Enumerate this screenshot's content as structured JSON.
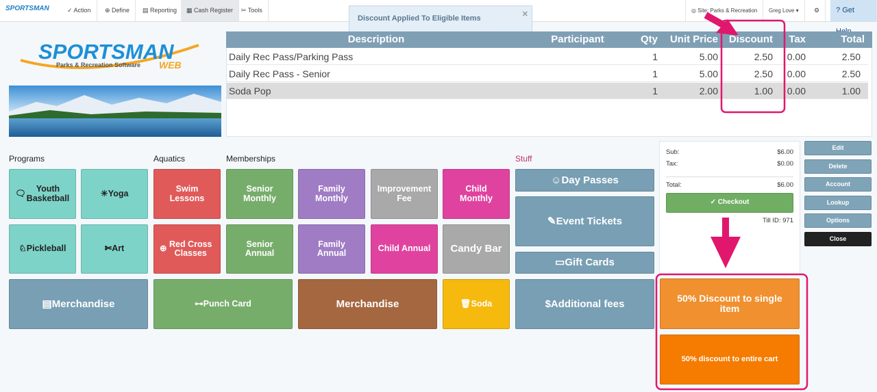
{
  "nav": {
    "logo": "SPORTSMAN",
    "items": [
      "Action",
      "Define",
      "Reporting",
      "Cash Register",
      "Tools"
    ],
    "site": "Site: Parks & Recreation",
    "user": "Greg Love",
    "help": "Get Help"
  },
  "toast": "Discount Applied To Eligible Items",
  "brand": {
    "name": "SPORTSMAN",
    "tagline": "Parks & Recreation Software",
    "sub": "WEB"
  },
  "cart": {
    "columns": [
      "Description",
      "Participant",
      "Qty",
      "Unit Price",
      "Discount",
      "Tax",
      "Total"
    ],
    "rows": [
      {
        "description": "Daily Rec Pass/Parking Pass",
        "qty": "1",
        "unit_price": "5.00",
        "discount": "2.50",
        "tax": "0.00",
        "total": "2.50"
      },
      {
        "description": "Daily Rec Pass - Senior",
        "qty": "1",
        "unit_price": "5.00",
        "discount": "2.50",
        "tax": "0.00",
        "total": "2.50"
      },
      {
        "description": "Soda Pop",
        "qty": "1",
        "unit_price": "2.00",
        "discount": "1.00",
        "tax": "0.00",
        "total": "1.00"
      }
    ]
  },
  "groups": [
    {
      "label": "Programs",
      "buttons": [
        "Youth Basketball",
        "Yoga",
        "Pickleball",
        "Art",
        "Merchandise"
      ]
    },
    {
      "label": "Aquatics",
      "buttons": [
        "Swim Lessons",
        "Red Cross Classes",
        "Punch Card"
      ]
    },
    {
      "label": "Memberships",
      "buttons": [
        "Senior Monthly",
        "Family Monthly",
        "Improvement Fee",
        "Child Monthly",
        "Senior Annual",
        "Family Annual",
        "Child Annual",
        "Candy Bar",
        "Merchandise",
        "Soda"
      ]
    },
    {
      "label": "Stuff",
      "buttons": [
        "Day Passes",
        "Event Tickets",
        "Gift Cards",
        "Additional fees"
      ]
    }
  ],
  "summary": {
    "sub_label": "Sub:",
    "sub": "$6.00",
    "tax_label": "Tax:",
    "tax": "$0.00",
    "total_label": "Total:",
    "total": "$6.00",
    "checkout": "Checkout",
    "till": "Till ID: 971"
  },
  "actions": [
    "Edit",
    "Delete",
    "Account",
    "Lookup",
    "Options",
    "Close"
  ],
  "discounts": [
    "50% Discount to single item",
    "50% discount to entire cart"
  ]
}
